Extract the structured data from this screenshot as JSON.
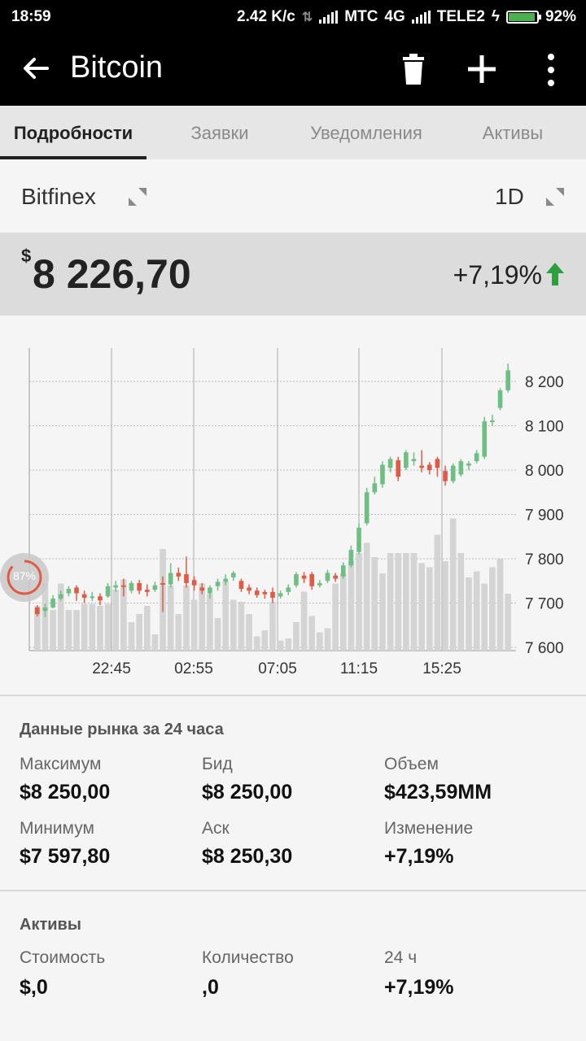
{
  "status_bar": {
    "time": "18:59",
    "speed": "2.42 K/c",
    "carrier1": "МТС",
    "network": "4G",
    "carrier2": "TELE2",
    "battery": "92%"
  },
  "app_bar": {
    "title": "Bitcoin",
    "icons": [
      "back-arrow-icon",
      "trash-icon",
      "plus-icon",
      "more-vert-icon"
    ]
  },
  "tabs": [
    {
      "label": "Подробности",
      "active": true
    },
    {
      "label": "Заявки",
      "active": false
    },
    {
      "label": "Уведомления",
      "active": false
    },
    {
      "label": "Активы",
      "active": false
    }
  ],
  "exchange": {
    "name": "Bitfinex",
    "period": "1D"
  },
  "price": {
    "currency": "$",
    "value": "8 226,70",
    "change": "+7,19%",
    "direction": "up",
    "up_color": "#2e9e3e"
  },
  "loader": {
    "text": "87%"
  },
  "chart_data": {
    "type": "candlestick",
    "x_ticks": [
      "22:45",
      "02:55",
      "07:05",
      "11:15",
      "15:25"
    ],
    "y_ticks": [
      "8 200",
      "8 100",
      "8 000",
      "7 900",
      "7 800",
      "7 700",
      "7 600"
    ],
    "y_tick_values": [
      8200,
      8100,
      8000,
      7900,
      7800,
      7700,
      7600
    ],
    "ylim": [
      7600,
      8260
    ],
    "up_color": "#6fbf85",
    "down_color": "#e05b45",
    "volume_color": "#d4d4d4",
    "candles": [
      [
        7690,
        7675,
        7695,
        7670
      ],
      [
        7682,
        7690,
        7698,
        7668
      ],
      [
        7690,
        7710,
        7718,
        7688
      ],
      [
        7710,
        7720,
        7728,
        7705
      ],
      [
        7722,
        7732,
        7738,
        7715
      ],
      [
        7735,
        7722,
        7740,
        7705
      ],
      [
        7720,
        7712,
        7728,
        7700
      ],
      [
        7714,
        7715,
        7725,
        7705
      ],
      [
        7715,
        7706,
        7722,
        7695
      ],
      [
        7715,
        7738,
        7745,
        7712
      ],
      [
        7735,
        7740,
        7750,
        7725
      ],
      [
        7740,
        7738,
        7755,
        7715
      ],
      [
        7728,
        7745,
        7750,
        7722
      ],
      [
        7745,
        7728,
        7752,
        7720
      ],
      [
        7730,
        7725,
        7742,
        7715
      ],
      [
        7730,
        7740,
        7748,
        7725
      ],
      [
        7745,
        7742,
        7760,
        7680
      ],
      [
        7742,
        7768,
        7790,
        7735
      ],
      [
        7768,
        7760,
        7780,
        7750
      ],
      [
        7765,
        7745,
        7805,
        7735
      ],
      [
        7752,
        7740,
        7760,
        7728
      ],
      [
        7735,
        7728,
        7745,
        7720
      ],
      [
        7722,
        7735,
        7740,
        7710
      ],
      [
        7738,
        7748,
        7755,
        7728
      ],
      [
        7748,
        7755,
        7765,
        7740
      ],
      [
        7758,
        7768,
        7772,
        7750
      ],
      [
        7750,
        7732,
        7755,
        7725
      ],
      [
        7735,
        7728,
        7742,
        7720
      ],
      [
        7728,
        7718,
        7735,
        7712
      ],
      [
        7725,
        7720,
        7730,
        7710
      ],
      [
        7725,
        7712,
        7735,
        7700
      ],
      [
        7715,
        7722,
        7728,
        7710
      ],
      [
        7725,
        7735,
        7742,
        7718
      ],
      [
        7740,
        7765,
        7770,
        7735
      ],
      [
        7762,
        7755,
        7770,
        7745
      ],
      [
        7765,
        7738,
        7770,
        7730
      ],
      [
        7740,
        7745,
        7752,
        7735
      ],
      [
        7750,
        7768,
        7775,
        7745
      ],
      [
        7762,
        7755,
        7768,
        7748
      ],
      [
        7760,
        7785,
        7792,
        7755
      ],
      [
        7785,
        7820,
        7830,
        7780
      ],
      [
        7815,
        7870,
        7880,
        7810
      ],
      [
        7880,
        7950,
        7960,
        7875
      ],
      [
        7950,
        7970,
        7985,
        7945
      ],
      [
        7968,
        8012,
        8020,
        7960
      ],
      [
        8005,
        8025,
        8030,
        7995
      ],
      [
        8022,
        7985,
        8030,
        7975
      ],
      [
        8005,
        8040,
        8045,
        8000
      ],
      [
        8020,
        8025,
        8040,
        8010
      ],
      [
        8010,
        8005,
        8045,
        7995
      ],
      [
        8012,
        8000,
        8018,
        7990
      ],
      [
        8025,
        8005,
        8030,
        7985
      ],
      [
        7998,
        7975,
        8010,
        7965
      ],
      [
        7975,
        8010,
        8015,
        7970
      ],
      [
        7990,
        8020,
        8025,
        7985
      ],
      [
        8010,
        8015,
        8020,
        8000
      ],
      [
        8020,
        8038,
        8045,
        8015
      ],
      [
        8030,
        8110,
        8120,
        8025
      ],
      [
        8110,
        8112,
        8125,
        8100
      ],
      [
        8140,
        8180,
        8185,
        8135
      ],
      [
        8180,
        8225,
        8240,
        8175
      ]
    ],
    "volumes": [
      0.22,
      0.33,
      0.2,
      0.33,
      0.2,
      0.2,
      0.23,
      0.23,
      0.22,
      0.23,
      0.3,
      0.35,
      0.14,
      0.18,
      0.22,
      0.08,
      0.5,
      0.32,
      0.18,
      0.32,
      0.25,
      0.33,
      0.28,
      0.16,
      0.34,
      0.25,
      0.24,
      0.18,
      0.07,
      0.1,
      0.24,
      0.05,
      0.06,
      0.14,
      0.29,
      0.17,
      0.09,
      0.11,
      0.33,
      0.38,
      0.44,
      0.48,
      0.53,
      0.46,
      0.38,
      0.48,
      0.48,
      0.48,
      0.48,
      0.43,
      0.41,
      0.57,
      0.44,
      0.65,
      0.48,
      0.36,
      0.39,
      0.33,
      0.41,
      0.45,
      0.28
    ],
    "volume_scale_note": "relative"
  },
  "market_24h": {
    "title": "Данные рынка за 24 часа",
    "rows": [
      [
        {
          "label": "Максимум",
          "value": "$8 250,00"
        },
        {
          "label": "Бид",
          "value": "$8 250,00"
        },
        {
          "label": "Объем",
          "value": "$423,59MM"
        }
      ],
      [
        {
          "label": "Минимум",
          "value": "$7 597,80"
        },
        {
          "label": "Аск",
          "value": "$8 250,30"
        },
        {
          "label": "Изменение",
          "value": "+7,19%"
        }
      ]
    ]
  },
  "assets": {
    "title": "Активы",
    "row": [
      {
        "label": "Стоимость",
        "value": "$,0"
      },
      {
        "label": "Количество",
        "value": ",0"
      },
      {
        "label": "24 ч",
        "value": "+7,19%"
      }
    ]
  }
}
